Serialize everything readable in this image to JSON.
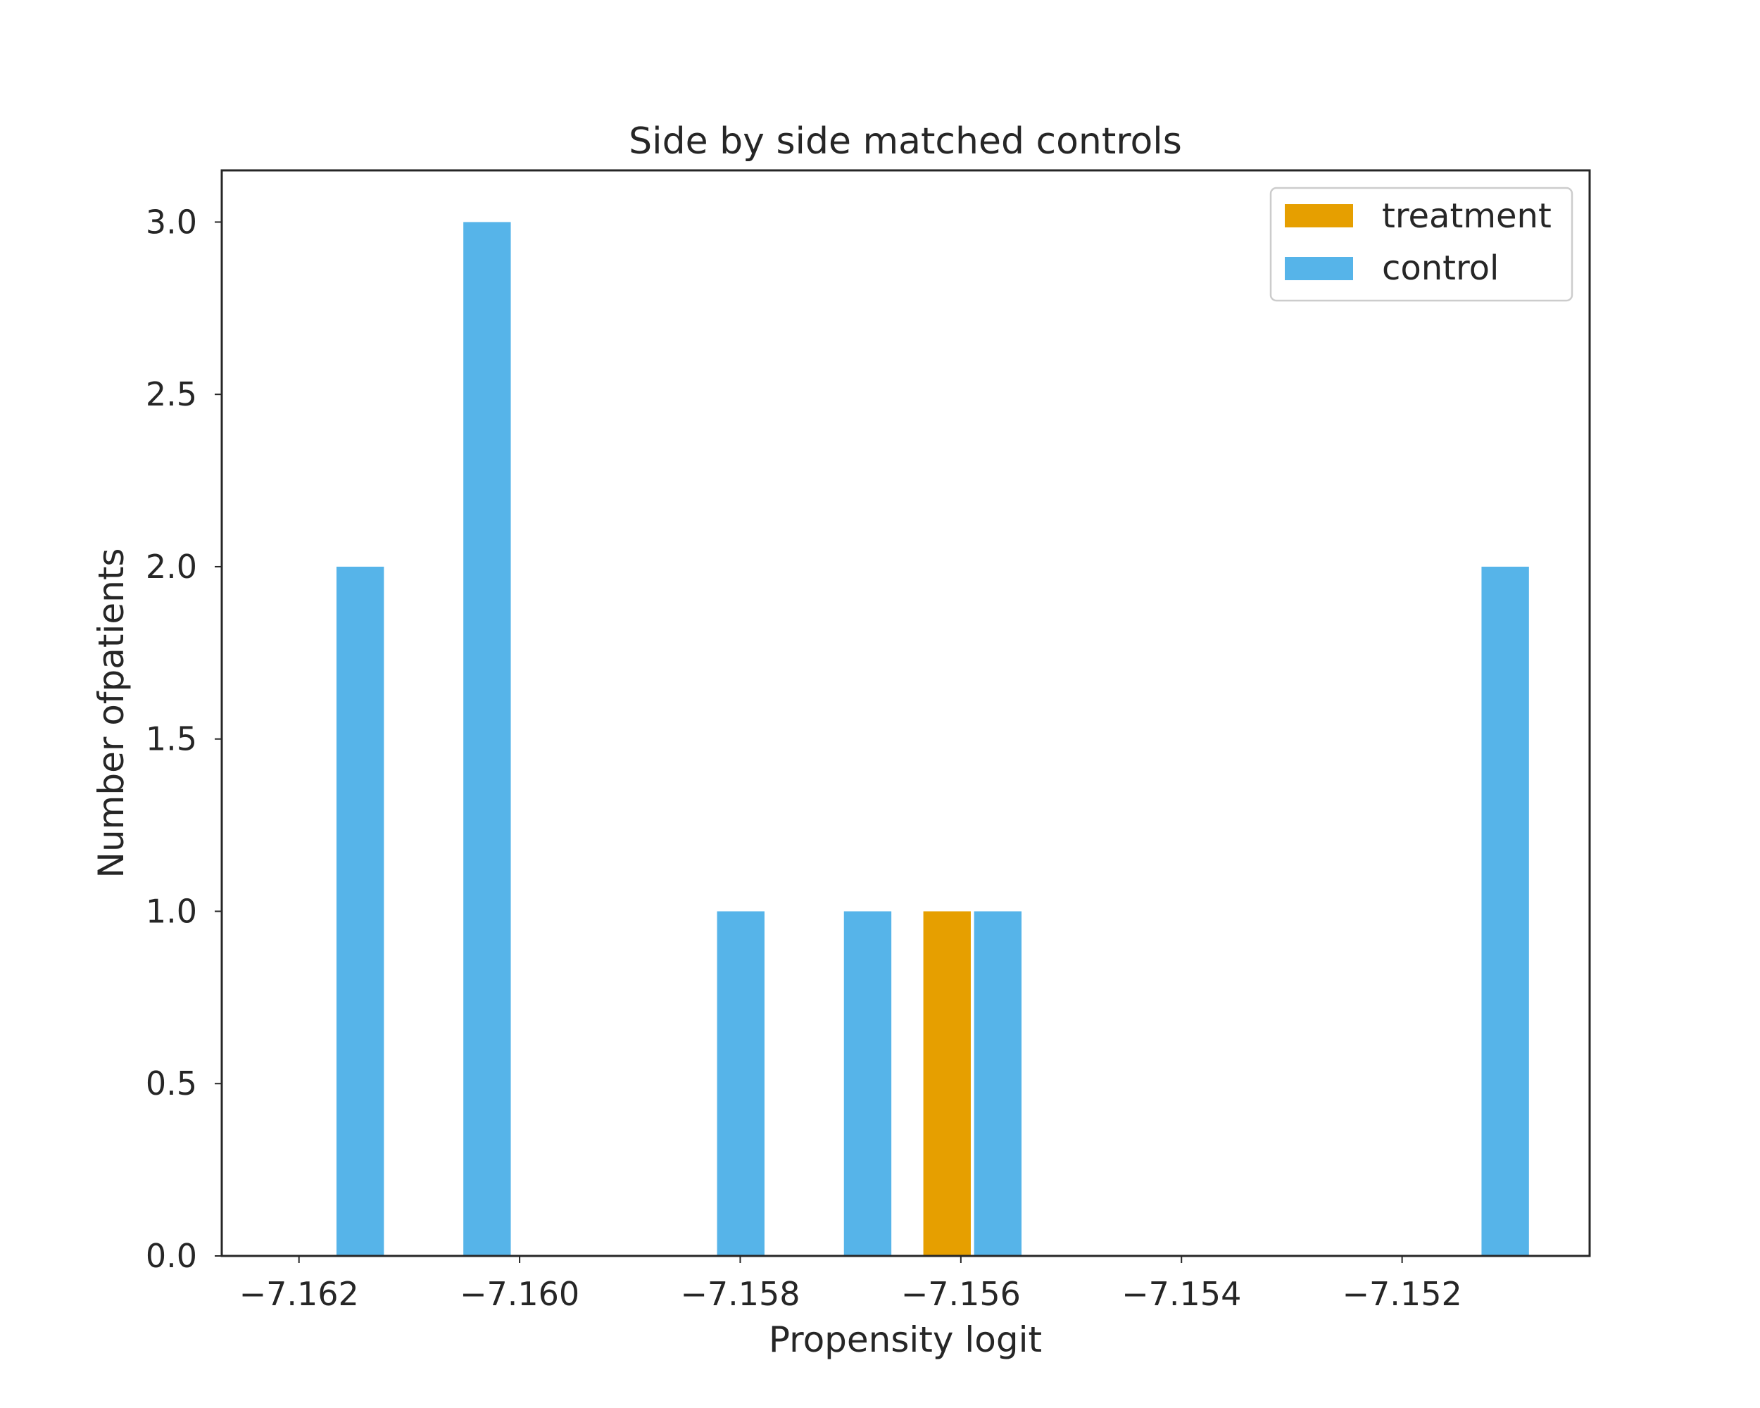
{
  "chart_data": {
    "type": "bar",
    "title": "Side by side matched controls",
    "xlabel": "Propensity logit",
    "ylabel": "Number ofpatients",
    "xlim": [
      -7.1627,
      -7.1503
    ],
    "ylim": [
      0,
      3.15
    ],
    "x_ticks": [
      -7.162,
      -7.16,
      -7.158,
      -7.156,
      -7.154,
      -7.152
    ],
    "x_tick_labels": [
      "−7.162",
      "−7.160",
      "−7.158",
      "−7.156",
      "−7.154",
      "−7.152"
    ],
    "y_ticks": [
      0,
      0.5,
      1,
      1.5,
      2,
      2.5,
      3
    ],
    "y_tick_labels": [
      "0.0",
      "0.5",
      "1.0",
      "1.5",
      "2.0",
      "2.5",
      "3.0"
    ],
    "grid": false,
    "legend_position": "top-right",
    "series": [
      {
        "name": "treatment",
        "color": "#E69F00",
        "bars": [
          {
            "x0": -7.15634,
            "x1": -7.15591,
            "value": 1
          }
        ]
      },
      {
        "name": "control",
        "color": "#56B4E9",
        "bars": [
          {
            "x0": -7.16166,
            "x1": -7.16123,
            "value": 2
          },
          {
            "x0": -7.16051,
            "x1": -7.16008,
            "value": 3
          },
          {
            "x0": -7.15821,
            "x1": -7.15778,
            "value": 1
          },
          {
            "x0": -7.15706,
            "x1": -7.15663,
            "value": 1
          },
          {
            "x0": -7.15588,
            "x1": -7.15545,
            "value": 1
          },
          {
            "x0": -7.15128,
            "x1": -7.15085,
            "value": 2
          }
        ]
      }
    ]
  }
}
